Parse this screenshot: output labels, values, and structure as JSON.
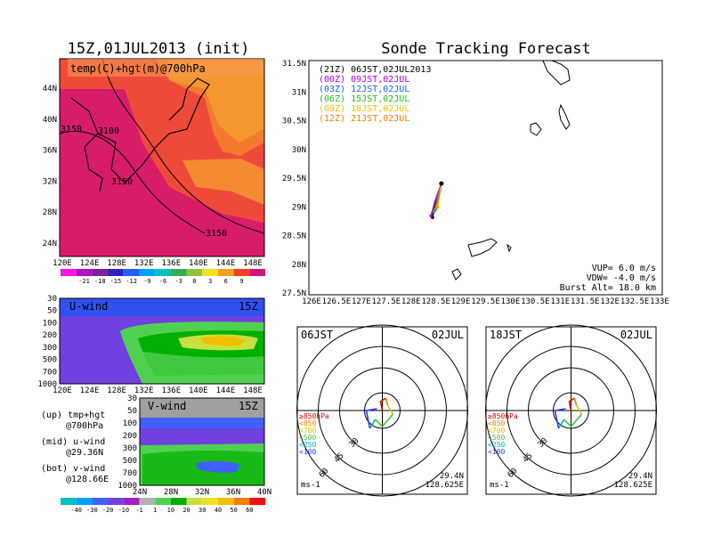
{
  "left_title": "15Z,01JUL2013 (init)",
  "right_title": "Sonde Tracking Forecast",
  "temp_map": {
    "label": "temp(C)+hgt(m)@700hPa",
    "yticks": [
      "44N",
      "40N",
      "36N",
      "32N",
      "28N",
      "24N"
    ],
    "xticks": [
      "120E",
      "124E",
      "128E",
      "132E",
      "136E",
      "140E",
      "144E",
      "148E"
    ],
    "contour_labels": [
      "3100",
      "3150",
      "3150",
      "3150"
    ],
    "colorbar_labels": [
      "-21",
      "-18",
      "-15",
      "-12",
      "-9",
      "-6",
      "-3",
      "0",
      "3",
      "6",
      "9"
    ]
  },
  "u_wind": {
    "label": "U-wind",
    "time": "15Z",
    "yticks": [
      "30",
      "50",
      "100",
      "200",
      "300",
      "500",
      "700",
      "1000"
    ],
    "xticks": [
      "120E",
      "124E",
      "128E",
      "132E",
      "136E",
      "140E",
      "144E",
      "148E"
    ]
  },
  "v_wind": {
    "label": "V-wind",
    "time": "15Z",
    "yticks": [
      "30",
      "50",
      "100",
      "200",
      "300",
      "500",
      "700",
      "1000"
    ],
    "xticks": [
      "24N",
      "28N",
      "32N",
      "36N",
      "40N"
    ]
  },
  "wind_colorbar_labels": [
    "-40",
    "-30",
    "-20",
    "-10",
    "-1",
    "1",
    "10",
    "20",
    "30",
    "40",
    "50",
    "60"
  ],
  "notes": {
    "up_1": "(up)  tmp+hgt",
    "up_2": "@700hPa",
    "mid_1": "(mid)  u-wind",
    "mid_2": "@29.36N",
    "bot_1": "(bot)  v-wind",
    "bot_2": "@128.66E"
  },
  "track": {
    "legend": [
      {
        "text": "(21Z)  06JST,02JUL2013",
        "color": "#000000"
      },
      {
        "text": "(00Z)  09JST,02JUL",
        "color": "#b000e0"
      },
      {
        "text": "(03Z)  12JST,02JUL",
        "color": "#2060ff"
      },
      {
        "text": "(06Z)  15JST,02JUL",
        "color": "#20c020"
      },
      {
        "text": "(09Z)  18JST,02JUL",
        "color": "#f0c000"
      },
      {
        "text": "(12Z)  21JST,02JUL",
        "color": "#f08000"
      }
    ],
    "yticks": [
      "31.5N",
      "31N",
      "30.5N",
      "30N",
      "29.5N",
      "29N",
      "28.5N",
      "28N",
      "27.5N"
    ],
    "xticks": [
      "126E",
      "126.5E",
      "127E",
      "127.5E",
      "128E",
      "128.5E",
      "129E",
      "129.5E",
      "130E",
      "130.5E",
      "131E",
      "131.5E",
      "132E",
      "132.5E",
      "133E"
    ],
    "vup": "VUP=  6.0  m/s",
    "vdw": "VDW= -4.0  m/s",
    "burst": "Burst Alt=  18.0  km"
  },
  "hodo_left": {
    "time": "06JST",
    "date": "02JUL",
    "lat": "29.4N",
    "lon": "128.625E",
    "unit": "ms-1",
    "rings": [
      "30",
      "45",
      "60"
    ]
  },
  "hodo_right": {
    "time": "18JST",
    "date": "02JUL",
    "lat": "29.4N",
    "lon": "128.625E",
    "unit": "ms-1",
    "rings": [
      "30",
      "45",
      "60"
    ]
  },
  "hodo_legend": [
    {
      "text": "≥850hPa",
      "color": "#e00000"
    },
    {
      "text": "<850",
      "color": "#f08000"
    },
    {
      "text": "<700",
      "color": "#e0c000"
    },
    {
      "text": "<500",
      "color": "#40c040"
    },
    {
      "text": "<250",
      "color": "#00b0b0"
    },
    {
      "text": "<100",
      "color": "#2040ff"
    }
  ],
  "colors": {
    "temp_fill": [
      "#d0147a",
      "#e8284a",
      "#f45038",
      "#f87c2c",
      "#f8a030"
    ],
    "wind_scale": [
      "#00c0c0",
      "#00a0ff",
      "#4060ff",
      "#7040e0",
      "#b0b0b0",
      "#50d050",
      "#00b000",
      "#c8e040",
      "#f0c000",
      "#f08000",
      "#f01010"
    ]
  },
  "chart_data": {
    "type": "line",
    "title": "Sonde Tracking Forecast",
    "xlabel": "",
    "ylabel": "",
    "xlim": [
      126,
      133
    ],
    "ylim": [
      27.5,
      31.5
    ],
    "series": [
      {
        "name": "(21Z) 06JST,02JUL2013",
        "x": [
          128.625,
          128.5,
          128.45
        ],
        "y": [
          29.4,
          29.05,
          28.82
        ]
      },
      {
        "name": "(00Z) 09JST,02JUL",
        "x": [
          128.625,
          128.5,
          128.42
        ],
        "y": [
          29.4,
          29.1,
          28.85
        ]
      },
      {
        "name": "(03Z) 12JST,02JUL",
        "x": [
          128.625,
          128.55,
          128.5
        ],
        "y": [
          29.4,
          29.15,
          28.95
        ]
      },
      {
        "name": "(06Z) 15JST,02JUL",
        "x": [
          128.625,
          128.55,
          128.48
        ],
        "y": [
          29.4,
          29.12,
          28.92
        ]
      },
      {
        "name": "(09Z) 18JST,02JUL",
        "x": [
          128.625,
          128.58,
          128.55
        ],
        "y": [
          29.4,
          29.2,
          29.0
        ]
      },
      {
        "name": "(12Z) 21JST,02JUL",
        "x": [
          128.625,
          128.58,
          128.52
        ],
        "y": [
          29.4,
          29.18,
          28.98
        ]
      }
    ]
  }
}
